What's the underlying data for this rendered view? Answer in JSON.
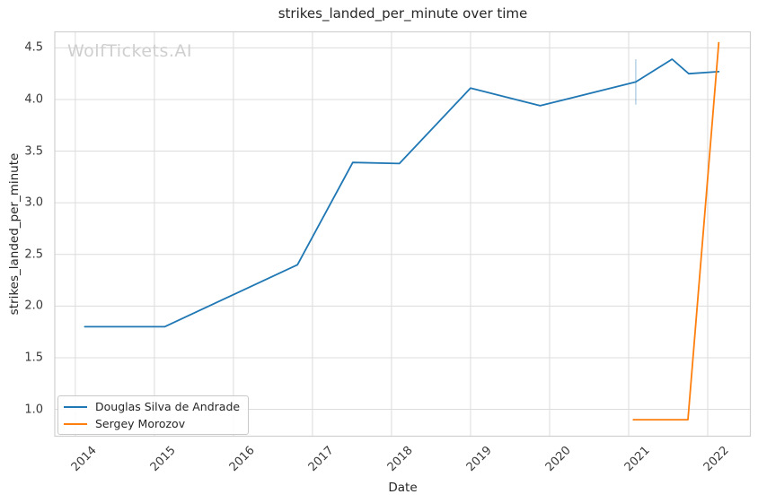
{
  "watermark": "WolfTickets.AI",
  "colors": {
    "background": "#ffffff",
    "grid": "#dcdcdc",
    "spine": "#d0d0d0",
    "tick_label": "#3a3a3a",
    "text": "#262626",
    "watermark": "#cfcfcf",
    "series_blue": "#1f77b4",
    "series_orange": "#ff7f0e",
    "error_bar": "rgba(31,119,180,0.3)"
  },
  "chart_data": {
    "type": "line",
    "title": "strikes_landed_per_minute over time",
    "xlabel": "Date",
    "ylabel": "strikes_landed_per_minute",
    "xticks": [
      2014,
      2015,
      2016,
      2017,
      2018,
      2019,
      2020,
      2021,
      2022
    ],
    "yticks": [
      1.0,
      1.5,
      2.0,
      2.5,
      3.0,
      3.5,
      4.0,
      4.5
    ],
    "xlim": [
      2013.74,
      2022.54
    ],
    "ylim": [
      0.74,
      4.655
    ],
    "grid": true,
    "legend_position": "lower left",
    "x_unit": "decimal years",
    "series": [
      {
        "name": "Douglas Silva de Andrade",
        "color": "#1f77b4",
        "x": [
          2014.12,
          2015.13,
          2016.81,
          2017.51,
          2018.1,
          2019.0,
          2019.88,
          2021.09,
          2021.55,
          2021.76,
          2022.14
        ],
        "y": [
          1.8,
          1.8,
          2.4,
          3.39,
          3.38,
          4.11,
          3.94,
          4.17,
          4.39,
          4.25,
          4.27
        ]
      },
      {
        "name": "Sergey Morozov",
        "color": "#ff7f0e",
        "x": [
          2021.06,
          2021.75,
          2022.14
        ],
        "y": [
          0.9,
          0.9,
          4.55
        ]
      }
    ],
    "error_bars": [
      {
        "series": "Douglas Silva de Andrade",
        "x": 2021.09,
        "y_low": 3.95,
        "y_high": 4.39,
        "color": "rgba(31,119,180,0.3)"
      }
    ]
  }
}
